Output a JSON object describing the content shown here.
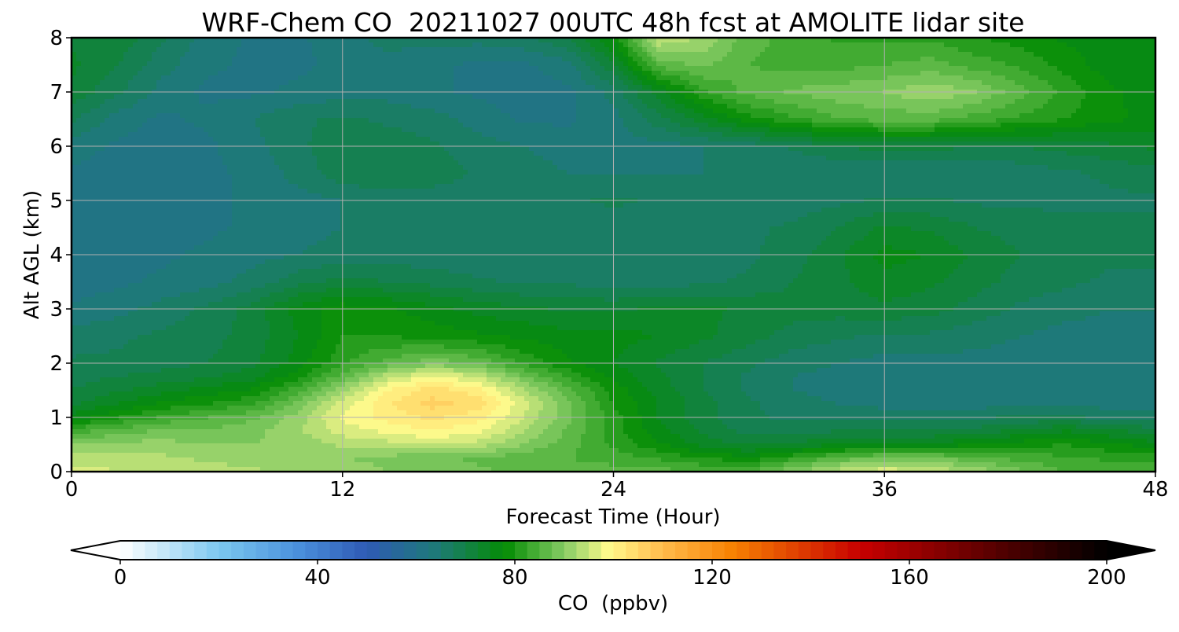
{
  "chart_data": {
    "type": "heatmap",
    "title": "WRF-Chem CO  20211027 00UTC 48h fcst at AMOLITE lidar site",
    "xlabel": "Forecast Time (Hour)",
    "ylabel": "Alt AGL (km)",
    "xlim": [
      0,
      48
    ],
    "ylim": [
      0,
      8
    ],
    "xticks": [
      0,
      12,
      24,
      36,
      48
    ],
    "yticks": [
      0,
      1,
      2,
      3,
      4,
      5,
      6,
      7,
      8
    ],
    "grid": true,
    "x_hours": [
      0,
      2,
      4,
      6,
      8,
      10,
      12,
      14,
      16,
      18,
      20,
      22,
      24,
      26,
      28,
      30,
      32,
      34,
      36,
      38,
      40,
      42,
      44,
      46,
      48
    ],
    "alt_km": [
      0,
      0.25,
      0.5,
      0.75,
      1,
      1.25,
      1.5,
      1.75,
      2,
      2.5,
      3,
      3.5,
      4,
      4.5,
      5,
      5.5,
      6,
      6.5,
      7,
      7.5,
      8
    ],
    "co_ppbv": [
      [
        96,
        95,
        95,
        94,
        93,
        92,
        92,
        90,
        89,
        88,
        87,
        86,
        86,
        86,
        85,
        85,
        90,
        94,
        97,
        95,
        92,
        88,
        85,
        84,
        84
      ],
      [
        94,
        94,
        93,
        92,
        91,
        90,
        90,
        89,
        88,
        87,
        86,
        85,
        84,
        82,
        80,
        78,
        82,
        86,
        88,
        88,
        86,
        84,
        83,
        82,
        82
      ],
      [
        90,
        91,
        91,
        90,
        90,
        91,
        93,
        94,
        95,
        94,
        90,
        86,
        82,
        78,
        74,
        72,
        73,
        75,
        76,
        76,
        77,
        79,
        80,
        78,
        76
      ],
      [
        84,
        86,
        88,
        88,
        89,
        92,
        96,
        98,
        100,
        98,
        93,
        87,
        81,
        76,
        72,
        69,
        69,
        70,
        70,
        70,
        71,
        73,
        75,
        73,
        71
      ],
      [
        76,
        80,
        83,
        85,
        87,
        91,
        98,
        101,
        103,
        101,
        95,
        88,
        81,
        75,
        71,
        68,
        67,
        67,
        67,
        67,
        67,
        68,
        68,
        67,
        66
      ],
      [
        72,
        75,
        78,
        80,
        82,
        88,
        96,
        102,
        106,
        104,
        96,
        88,
        80,
        75,
        71,
        68,
        66,
        65,
        64,
        64,
        64,
        64,
        64,
        64,
        64
      ],
      [
        70,
        72,
        74,
        76,
        78,
        84,
        92,
        100,
        104,
        101,
        93,
        86,
        79,
        74,
        70,
        67,
        65,
        64,
        63,
        63,
        63,
        63,
        63,
        63,
        63
      ],
      [
        69,
        70,
        71,
        72,
        74,
        79,
        86,
        94,
        98,
        95,
        88,
        82,
        77,
        73,
        70,
        67,
        65,
        64,
        63,
        63,
        63,
        63,
        63,
        63,
        63
      ],
      [
        68,
        68,
        69,
        70,
        72,
        76,
        82,
        86,
        89,
        87,
        82,
        78,
        75,
        72,
        70,
        68,
        66,
        65,
        64,
        64,
        64,
        64,
        64,
        64,
        64
      ],
      [
        66,
        67,
        68,
        69,
        71,
        75,
        80,
        80,
        79,
        78,
        77,
        76,
        76,
        75,
        73,
        71,
        69,
        68,
        67,
        67,
        66,
        65,
        64,
        64,
        64
      ],
      [
        63,
        64,
        66,
        68,
        71,
        76,
        79,
        78,
        76,
        74,
        73,
        72,
        72,
        73,
        73,
        72,
        71,
        71,
        72,
        71,
        69,
        67,
        66,
        65,
        65
      ],
      [
        61,
        62,
        63,
        64,
        66,
        69,
        71,
        70,
        69,
        68,
        67,
        67,
        66,
        66,
        67,
        68,
        70,
        72,
        74,
        73,
        71,
        69,
        68,
        67,
        67
      ],
      [
        61,
        61,
        62,
        63,
        64,
        65,
        66,
        66,
        66,
        65,
        65,
        65,
        65,
        65,
        66,
        67,
        69,
        72,
        76,
        75,
        72,
        70,
        69,
        68,
        68
      ],
      [
        61,
        61,
        62,
        62,
        63,
        64,
        65,
        65,
        65,
        65,
        65,
        65,
        66,
        66,
        66,
        67,
        68,
        70,
        73,
        72,
        70,
        69,
        68,
        68,
        68
      ],
      [
        61,
        61,
        61,
        62,
        63,
        64,
        65,
        66,
        66,
        66,
        67,
        67,
        68,
        67,
        66,
        66,
        66,
        67,
        68,
        68,
        67,
        67,
        67,
        67,
        67
      ],
      [
        62,
        61,
        61,
        62,
        63,
        66,
        69,
        70,
        69,
        67,
        66,
        65,
        65,
        65,
        65,
        65,
        65,
        65,
        65,
        65,
        65,
        66,
        67,
        68,
        69
      ],
      [
        64,
        62,
        61,
        62,
        64,
        67,
        69,
        69,
        68,
        66,
        65,
        64,
        64,
        64,
        65,
        66,
        68,
        70,
        71,
        71,
        70,
        70,
        71,
        72,
        73
      ],
      [
        68,
        64,
        62,
        63,
        65,
        67,
        68,
        67,
        66,
        64,
        62,
        62,
        64,
        69,
        74,
        79,
        82,
        85,
        86,
        86,
        84,
        82,
        80,
        78,
        77
      ],
      [
        72,
        68,
        64,
        62,
        62,
        63,
        64,
        64,
        63,
        62,
        61,
        62,
        66,
        74,
        82,
        86,
        88,
        89,
        90,
        92,
        90,
        86,
        82,
        78,
        76
      ],
      [
        73,
        70,
        66,
        63,
        62,
        62,
        63,
        64,
        63,
        62,
        62,
        64,
        72,
        86,
        88,
        85,
        84,
        84,
        85,
        86,
        84,
        82,
        79,
        76,
        75
      ],
      [
        72,
        72,
        68,
        64,
        62,
        62,
        64,
        66,
        66,
        66,
        67,
        70,
        78,
        95,
        92,
        86,
        84,
        82,
        82,
        82,
        80,
        79,
        77,
        76,
        75
      ]
    ],
    "colorbar": {
      "label": "CO  (ppbv)",
      "ticks": [
        0,
        40,
        80,
        120,
        160,
        200
      ],
      "min": 0,
      "max": 200,
      "step": 2.5,
      "extend": "both",
      "colors": {
        "0": "#ffffff",
        "20": "#7cc8f0",
        "36": "#4a90dc",
        "50": "#2e5ab4",
        "64": "#1e7a78",
        "78": "#048c04",
        "90": "#86cc64",
        "99": "#fffa8c",
        "110": "#ffbb4c",
        "124": "#f88202",
        "150": "#c80000",
        "180": "#4c0000",
        "200": "#000000"
      }
    }
  }
}
